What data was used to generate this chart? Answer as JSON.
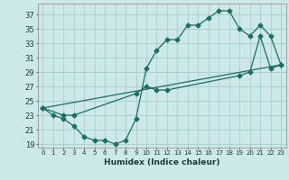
{
  "title": "",
  "xlabel": "Humidex (Indice chaleur)",
  "bg_color": "#cce8e8",
  "grid_color": "#aacccc",
  "line_color": "#1a6e62",
  "xlim": [
    -0.5,
    23.5
  ],
  "ylim": [
    18.5,
    38.5
  ],
  "yticks": [
    19,
    21,
    23,
    25,
    27,
    29,
    31,
    33,
    35,
    37
  ],
  "xticks": [
    0,
    1,
    2,
    3,
    4,
    5,
    6,
    7,
    8,
    9,
    10,
    11,
    12,
    13,
    14,
    15,
    16,
    17,
    18,
    19,
    20,
    21,
    22,
    23
  ],
  "line1_x": [
    0,
    1,
    2,
    3,
    4,
    5,
    6,
    7,
    8,
    9,
    10,
    11,
    12,
    13,
    14,
    15,
    16,
    17,
    18,
    19,
    20,
    21,
    22,
    23
  ],
  "line1_y": [
    24.0,
    23.0,
    22.5,
    21.5,
    20.0,
    19.5,
    19.5,
    19.0,
    19.5,
    22.5,
    29.5,
    32.0,
    33.5,
    33.5,
    35.5,
    35.5,
    36.5,
    37.5,
    37.5,
    35.0,
    34.0,
    35.5,
    34.0,
    30.0
  ],
  "line2_x": [
    0,
    2,
    3,
    9,
    10,
    11,
    12,
    19,
    20,
    21,
    22,
    23
  ],
  "line2_y": [
    24.0,
    23.0,
    23.0,
    26.0,
    27.0,
    26.5,
    26.5,
    28.5,
    29.0,
    34.0,
    29.5,
    30.0
  ],
  "line3_x": [
    0,
    23
  ],
  "line3_y": [
    24.0,
    30.0
  ],
  "marker_size": 2.5,
  "line_width": 0.9
}
